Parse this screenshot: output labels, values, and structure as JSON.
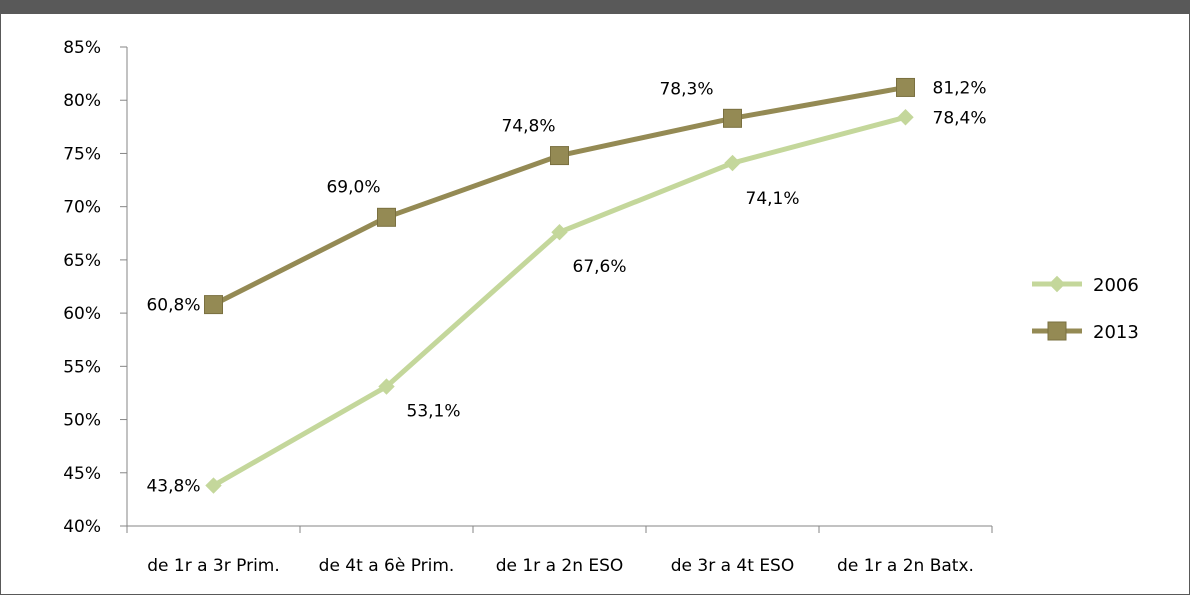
{
  "chart_data": {
    "type": "line",
    "title": "",
    "xlabel": "",
    "ylabel": "",
    "categories": [
      "de 1r a 3r Prim.",
      "de 4t a 6è Prim.",
      "de 1r a 2n ESO",
      "de 3r a 4t ESO",
      "de 1r a 2n Batx."
    ],
    "ylim": [
      40,
      85
    ],
    "y_tick_step": 5,
    "y_tick_labels": [
      "40%",
      "45%",
      "50%",
      "55%",
      "60%",
      "65%",
      "70%",
      "75%",
      "80%",
      "85%"
    ],
    "grid": false,
    "legend_position": "right",
    "series": [
      {
        "name": "2006",
        "color": "#c4d79b",
        "marker": "diamond",
        "values": [
          43.8,
          53.1,
          67.6,
          74.1,
          78.4
        ],
        "labels": [
          "43,8%",
          "53,1%",
          "67,6%",
          "74,1%",
          "78,4%"
        ]
      },
      {
        "name": "2013",
        "color": "#948a54",
        "marker": "square",
        "values": [
          60.8,
          69.0,
          74.8,
          78.3,
          81.2
        ],
        "labels": [
          "60,8%",
          "69,0%",
          "74,8%",
          "78,3%",
          "81,2%"
        ]
      }
    ]
  }
}
